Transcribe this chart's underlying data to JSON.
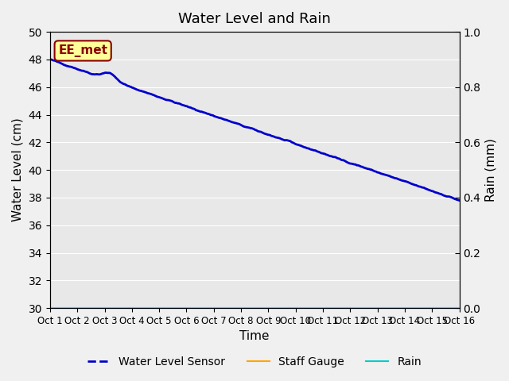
{
  "title": "Water Level and Rain",
  "xlabel": "Time",
  "ylabel_left": "Water Level (cm)",
  "ylabel_right": "Rain (mm)",
  "annotation_text": "EE_met",
  "annotation_box_color": "#FFFF99",
  "annotation_border_color": "#8B0000",
  "annotation_text_color": "#8B0000",
  "x_tick_labels": [
    "Oct 1",
    "Oct 2",
    "Oct 3",
    "Oct 4",
    "Oct 5",
    "Oct 6",
    "Oct 7",
    "Oct 8",
    "Oct 9",
    "Oct 10",
    "Oct 11",
    "Oct 12",
    "Oct 13",
    "Oct 14",
    "Oct 15",
    "Oct 16"
  ],
  "ylim_left": [
    30,
    50
  ],
  "ylim_right": [
    0.0,
    1.0
  ],
  "yticks_left": [
    30,
    32,
    34,
    36,
    38,
    40,
    42,
    44,
    46,
    48,
    50
  ],
  "yticks_right": [
    0.0,
    0.2,
    0.4,
    0.6,
    0.8,
    1.0
  ],
  "water_level_color": "#0000CC",
  "water_level_linewidth": 2.0,
  "staff_gauge_color": "#FFA500",
  "rain_color": "#00CCCC",
  "background_color": "#E8E8E8",
  "grid_color": "#FFFFFF",
  "fig_facecolor": "#F0F0F0",
  "legend_labels": [
    "Water Level Sensor",
    "Staff Gauge",
    "Rain"
  ],
  "legend_colors": [
    "#0000CC",
    "#FFA500",
    "#00CCCC"
  ],
  "legend_linewidths": [
    2.0,
    1.5,
    1.5
  ],
  "legend_linestyles": [
    "--",
    "-",
    "-"
  ]
}
